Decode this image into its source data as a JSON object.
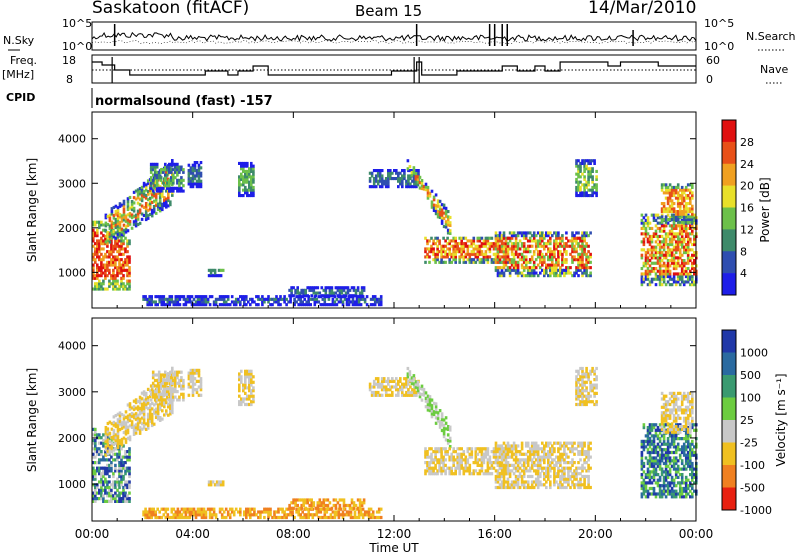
{
  "header": {
    "title": "Saskatoon (fitACF)",
    "beam": "Beam 15",
    "date": "14/Mar/2010"
  },
  "nsky_panel": {
    "left_label": "N.Sky",
    "right_label": "N.Search",
    "ticks_left": [
      "10^5",
      "10^0"
    ],
    "ticks_right": [
      "10^5",
      "10^0"
    ]
  },
  "freq_panel": {
    "left_label_line1": "Freq.",
    "left_label_line2": "[MHz]",
    "right_label": "Nave",
    "ticks_left": [
      "18",
      "8"
    ],
    "ticks_right": [
      "60",
      "0"
    ]
  },
  "cpid": {
    "label": "CPID",
    "text": "normalsound (fast) -157"
  },
  "chart_data": [
    {
      "type": "heatmap",
      "name": "power",
      "ylabel": "Slant Range [km]",
      "ylim": [
        200,
        4600
      ],
      "yticks": [
        "1000",
        "2000",
        "3000",
        "4000"
      ],
      "xlim_hours": [
        0,
        24
      ],
      "colorbar_label": "Power [dB]",
      "colorbar_ticks": [
        "4",
        "8",
        "12",
        "16",
        "20",
        "24",
        "28"
      ],
      "colors": [
        "#1e1ee8",
        "#2f4eb0",
        "#3e8a6a",
        "#6cc04a",
        "#e8e02a",
        "#f0a020",
        "#e85018",
        "#e01010"
      ]
    },
    {
      "type": "heatmap",
      "name": "velocity",
      "ylabel": "Slant Range [km]",
      "ylim": [
        200,
        4600
      ],
      "yticks": [
        "1000",
        "2000",
        "3000",
        "4000"
      ],
      "xlim_hours": [
        0,
        24
      ],
      "colorbar_label": "Velocity [m s⁻¹]",
      "colorbar_ticks": [
        "1000",
        "500",
        "100",
        "25",
        "-25",
        "-100",
        "-500",
        "-1000"
      ],
      "colors": [
        "#2038a8",
        "#2a6aa0",
        "#3a9a70",
        "#6ccc40",
        "#c8c8c8",
        "#f0c020",
        "#f08020",
        "#e82010"
      ]
    }
  ],
  "xaxis": {
    "label": "Time UT",
    "ticks": [
      "00:00",
      "04:00",
      "08:00",
      "12:00",
      "16:00",
      "20:00",
      "00:00"
    ]
  }
}
